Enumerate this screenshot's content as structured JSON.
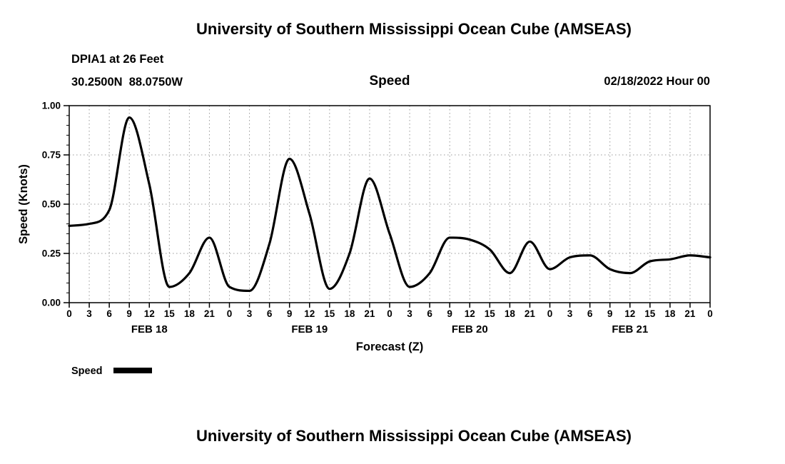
{
  "titles": {
    "top": "University of Southern Mississippi Ocean Cube (AMSEAS)",
    "bottom": "University of Southern Mississippi Ocean Cube (AMSEAS)"
  },
  "header": {
    "station": "DPIA1 at 26 Feet",
    "coords": "30.2500N  88.0750W",
    "plot_title": "Speed",
    "run_date": "02/18/2022 Hour 00"
  },
  "legend": {
    "label": "Speed"
  },
  "colors": {
    "line": "#000000",
    "grid": "#999999",
    "text": "#000000",
    "background": "#ffffff"
  },
  "chart_data": {
    "type": "line",
    "title": "Speed",
    "xlabel": "Forecast (Z)",
    "ylabel": "Speed (Knots)",
    "ylim": [
      0,
      1
    ],
    "xlim_hours": [
      0,
      96
    ],
    "grid": true,
    "legend_position": "bottom-left",
    "y_ticks": [
      0.0,
      0.25,
      0.5,
      0.75,
      1.0
    ],
    "y_tick_labels": [
      "0.00",
      "0.25",
      "0.50",
      "0.75",
      "1.00"
    ],
    "y_minor_step": 0.05,
    "x_tick_hours": [
      0,
      3,
      6,
      9,
      12,
      15,
      18,
      21,
      24,
      27,
      30,
      33,
      36,
      39,
      42,
      45,
      48,
      51,
      54,
      57,
      60,
      63,
      66,
      69,
      72,
      75,
      78,
      81,
      84,
      87,
      90,
      93,
      96
    ],
    "x_tick_labels": [
      "0",
      "3",
      "6",
      "9",
      "12",
      "15",
      "18",
      "21",
      "0",
      "3",
      "6",
      "9",
      "12",
      "15",
      "18",
      "21",
      "0",
      "3",
      "6",
      "9",
      "12",
      "15",
      "18",
      "21",
      "0",
      "3",
      "6",
      "9",
      "12",
      "15",
      "18",
      "21",
      "0"
    ],
    "day_labels": [
      {
        "label": "FEB 18",
        "hour": 12
      },
      {
        "label": "FEB 19",
        "hour": 36
      },
      {
        "label": "FEB 20",
        "hour": 60
      },
      {
        "label": "FEB 21",
        "hour": 84
      }
    ],
    "series": [
      {
        "name": "Speed",
        "x_hours": [
          0,
          3,
          6,
          9,
          12,
          15,
          18,
          21,
          24,
          27,
          30,
          33,
          36,
          39,
          42,
          45,
          48,
          51,
          54,
          57,
          60,
          63,
          66,
          69,
          72,
          75,
          78,
          81,
          84,
          87,
          90,
          93,
          96
        ],
        "values": [
          0.39,
          0.4,
          0.47,
          0.94,
          0.6,
          0.08,
          0.15,
          0.33,
          0.08,
          0.06,
          0.3,
          0.73,
          0.45,
          0.07,
          0.25,
          0.63,
          0.35,
          0.08,
          0.15,
          0.33,
          0.32,
          0.27,
          0.15,
          0.31,
          0.17,
          0.23,
          0.24,
          0.17,
          0.15,
          0.21,
          0.22,
          0.24,
          0.23
        ]
      }
    ]
  }
}
